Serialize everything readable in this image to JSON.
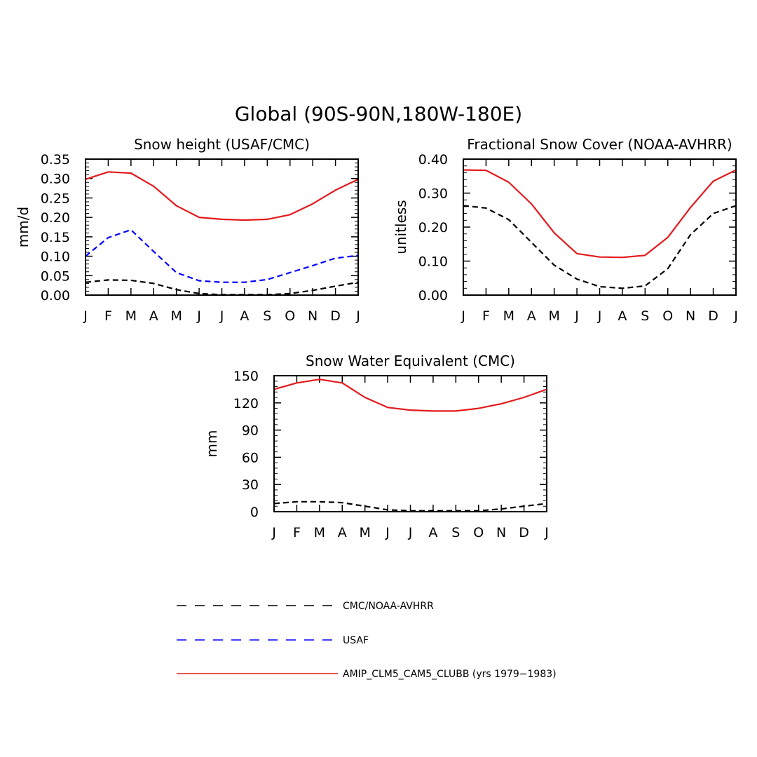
{
  "figure_title": "Global (90S-90N,180W-180E)",
  "chart_data": [
    {
      "type": "line",
      "title": "Snow height (USAF/CMC)",
      "xlabel": "",
      "ylabel": "mm/d",
      "x": [
        "J",
        "F",
        "M",
        "A",
        "M",
        "J",
        "J",
        "A",
        "S",
        "O",
        "N",
        "D",
        "J"
      ],
      "ylim": [
        0,
        0.35
      ],
      "yticks": [
        "0.00",
        "0.05",
        "0.10",
        "0.15",
        "0.20",
        "0.25",
        "0.30",
        "0.35"
      ],
      "series": [
        {
          "name": "AMIP_CLM5_CAM5_CLUBB (yrs 1979-1983)",
          "color": "#e41a1c",
          "dash": "solid",
          "values": [
            0.298,
            0.317,
            0.314,
            0.28,
            0.23,
            0.2,
            0.195,
            0.193,
            0.195,
            0.207,
            0.235,
            0.27,
            0.298
          ]
        },
        {
          "name": "USAF",
          "color": "#0000ff",
          "dash": "dashed",
          "values": [
            0.1,
            0.148,
            0.168,
            0.112,
            0.058,
            0.037,
            0.033,
            0.033,
            0.04,
            0.058,
            0.076,
            0.095,
            0.102
          ]
        },
        {
          "name": "CMC/NOAA-AVHRR",
          "color": "#000000",
          "dash": "dashed",
          "values": [
            0.033,
            0.039,
            0.038,
            0.03,
            0.014,
            0.004,
            0.001,
            0.001,
            0.001,
            0.004,
            0.012,
            0.023,
            0.033
          ]
        }
      ]
    },
    {
      "type": "line",
      "title": "Fractional Snow Cover (NOAA-AVHRR)",
      "xlabel": "",
      "ylabel": "unitless",
      "x": [
        "J",
        "F",
        "M",
        "A",
        "M",
        "J",
        "J",
        "A",
        "S",
        "O",
        "N",
        "D",
        "J"
      ],
      "ylim": [
        0,
        0.4
      ],
      "yticks": [
        "0.00",
        "0.10",
        "0.20",
        "0.30",
        "0.40"
      ],
      "series": [
        {
          "name": "AMIP_CLM5_CAM5_CLUBB (yrs 1979-1983)",
          "color": "#e41a1c",
          "dash": "solid",
          "values": [
            0.368,
            0.367,
            0.332,
            0.268,
            0.183,
            0.122,
            0.112,
            0.111,
            0.117,
            0.17,
            0.258,
            0.335,
            0.368
          ]
        },
        {
          "name": "CMC/NOAA-AVHRR",
          "color": "#000000",
          "dash": "dashed",
          "values": [
            0.263,
            0.256,
            0.222,
            0.155,
            0.088,
            0.047,
            0.025,
            0.02,
            0.027,
            0.078,
            0.178,
            0.24,
            0.263
          ]
        }
      ]
    },
    {
      "type": "line",
      "title": "Snow Water Equivalent (CMC)",
      "xlabel": "",
      "ylabel": "mm",
      "x": [
        "J",
        "F",
        "M",
        "A",
        "M",
        "J",
        "J",
        "A",
        "S",
        "O",
        "N",
        "D",
        "J"
      ],
      "ylim": [
        0,
        150
      ],
      "yticks": [
        "0",
        "30",
        "60",
        "90",
        "120",
        "150"
      ],
      "series": [
        {
          "name": "AMIP_CLM5_CAM5_CLUBB (yrs 1979-1983)",
          "color": "#e41a1c",
          "dash": "solid",
          "values": [
            135,
            142,
            146,
            142,
            126,
            115,
            112,
            111,
            111,
            114,
            119,
            126,
            135
          ]
        },
        {
          "name": "CMC/NOAA-AVHRR",
          "color": "#000000",
          "dash": "dashed",
          "values": [
            9,
            11,
            11,
            10,
            6,
            2,
            1,
            1,
            1,
            1,
            3,
            6,
            9
          ]
        }
      ]
    }
  ],
  "legend": [
    {
      "label": "CMC/NOAA-AVHRR",
      "color": "#000000",
      "dash": "dashed"
    },
    {
      "label": "USAF",
      "color": "#0000ff",
      "dash": "dashed"
    },
    {
      "label": "AMIP_CLM5_CAM5_CLUBB (yrs 1979−1983)",
      "color": "#e41a1c",
      "dash": "solid"
    }
  ]
}
